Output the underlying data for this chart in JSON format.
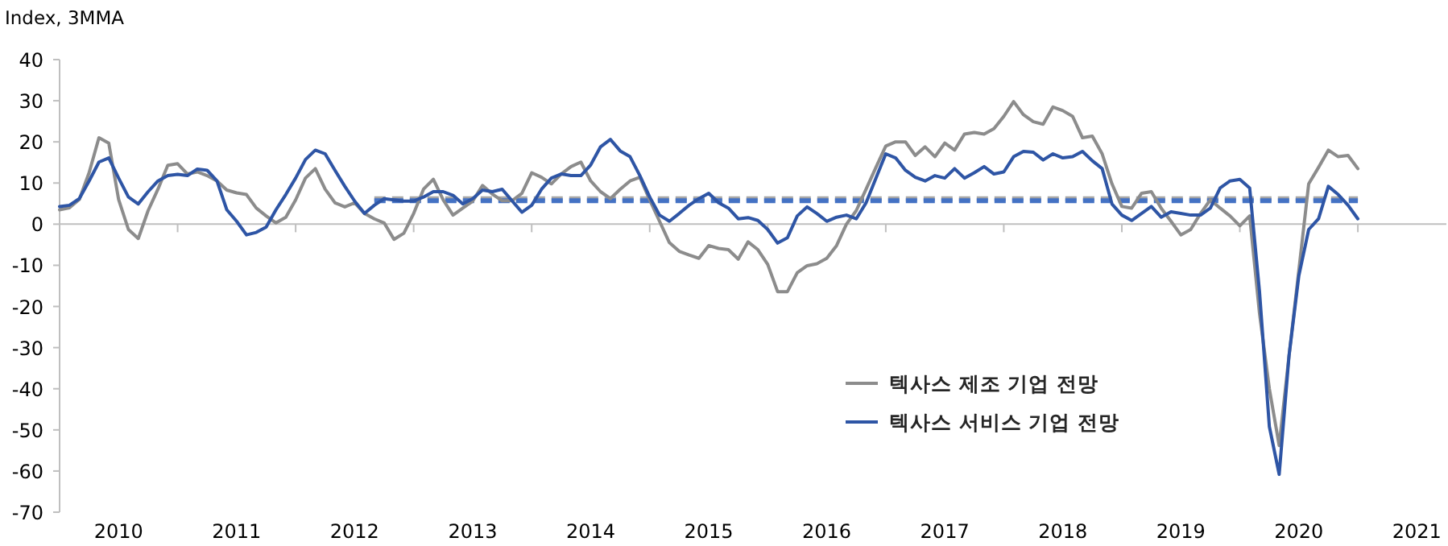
{
  "chart_data": {
    "type": "line",
    "ylabel": "Index, 3MMA",
    "legend": "bottom",
    "xlim": [
      "2010-01",
      "2021-10"
    ],
    "ylim": [
      -70,
      40
    ],
    "yticks": [
      -70,
      -60,
      -50,
      -40,
      -30,
      -20,
      -10,
      0,
      10,
      20,
      30,
      40
    ],
    "xticks": [
      {
        "value": "2010-07",
        "label": "2010"
      },
      {
        "value": "2011-07",
        "label": "2011"
      },
      {
        "value": "2012-07",
        "label": "2012"
      },
      {
        "value": "2013-07",
        "label": "2013"
      },
      {
        "value": "2014-07",
        "label": "2014"
      },
      {
        "value": "2015-07",
        "label": "2015"
      },
      {
        "value": "2016-07",
        "label": "2016"
      },
      {
        "value": "2017-07",
        "label": "2017"
      },
      {
        "value": "2018-07",
        "label": "2018"
      },
      {
        "value": "2019-07",
        "label": "2019"
      },
      {
        "value": "2020-07",
        "label": "2020"
      },
      {
        "value": "2021-07",
        "label": "2021"
      },
      {
        "value": "2011-01",
        "label": null
      },
      {
        "value": "2012-01",
        "label": null
      },
      {
        "value": "2013-01",
        "label": null
      },
      {
        "value": "2014-01",
        "label": null
      },
      {
        "value": "2015-01",
        "label": null
      },
      {
        "value": "2016-01",
        "label": null
      },
      {
        "value": "2017-01",
        "label": null
      },
      {
        "value": "2018-01",
        "label": null
      },
      {
        "value": "2019-01",
        "label": null
      },
      {
        "value": "2020-01",
        "label": null
      },
      {
        "value": "2021-01",
        "label": null
      }
    ],
    "x": [
      "2010-01",
      "2010-02",
      "2010-03",
      "2010-04",
      "2010-05",
      "2010-06",
      "2010-07",
      "2010-08",
      "2010-09",
      "2010-10",
      "2010-11",
      "2010-12",
      "2011-01",
      "2011-02",
      "2011-03",
      "2011-04",
      "2011-05",
      "2011-06",
      "2011-07",
      "2011-08",
      "2011-09",
      "2011-10",
      "2011-11",
      "2011-12",
      "2012-01",
      "2012-02",
      "2012-03",
      "2012-04",
      "2012-05",
      "2012-06",
      "2012-07",
      "2012-08",
      "2012-09",
      "2012-10",
      "2012-11",
      "2012-12",
      "2013-01",
      "2013-02",
      "2013-03",
      "2013-04",
      "2013-05",
      "2013-06",
      "2013-07",
      "2013-08",
      "2013-09",
      "2013-10",
      "2013-11",
      "2013-12",
      "2014-01",
      "2014-02",
      "2014-03",
      "2014-04",
      "2014-05",
      "2014-06",
      "2014-07",
      "2014-08",
      "2014-09",
      "2014-10",
      "2014-11",
      "2014-12",
      "2015-01",
      "2015-02",
      "2015-03",
      "2015-04",
      "2015-05",
      "2015-06",
      "2015-07",
      "2015-08",
      "2015-09",
      "2015-10",
      "2015-11",
      "2015-12",
      "2016-01",
      "2016-02",
      "2016-03",
      "2016-04",
      "2016-05",
      "2016-06",
      "2016-07",
      "2016-08",
      "2016-09",
      "2016-10",
      "2016-11",
      "2016-12",
      "2017-01",
      "2017-02",
      "2017-03",
      "2017-04",
      "2017-05",
      "2017-06",
      "2017-07",
      "2017-08",
      "2017-09",
      "2017-10",
      "2017-11",
      "2017-12",
      "2018-01",
      "2018-02",
      "2018-03",
      "2018-04",
      "2018-05",
      "2018-06",
      "2018-07",
      "2018-08",
      "2018-09",
      "2018-10",
      "2018-11",
      "2018-12",
      "2019-01",
      "2019-02",
      "2019-03",
      "2019-04",
      "2019-05",
      "2019-06",
      "2019-07",
      "2019-08",
      "2019-09",
      "2019-10",
      "2019-11",
      "2019-12",
      "2020-01",
      "2020-02",
      "2020-03",
      "2020-04",
      "2020-05",
      "2020-06",
      "2020-07",
      "2020-08",
      "2020-09",
      "2020-10",
      "2020-11",
      "2020-12",
      "2021-01"
    ],
    "series": [
      {
        "name": "텍사스 제조 기업 전망",
        "color": "#8c8c8c",
        "values": [
          3.5,
          4,
          6,
          12.5,
          21,
          19.7,
          6,
          -1.3,
          -3.5,
          3.3,
          8.5,
          14.3,
          14.7,
          12.2,
          12.7,
          11.8,
          10.5,
          8.3,
          7.6,
          7.2,
          3.9,
          2,
          0.3,
          1.7,
          5.9,
          11.2,
          13.5,
          8.5,
          5.2,
          4.2,
          5.2,
          2.6,
          1.3,
          0.3,
          -3.7,
          -2.2,
          2.6,
          8.5,
          10.9,
          5.9,
          2.2,
          3.9,
          5.6,
          9.4,
          7.3,
          5.7,
          5.7,
          7.5,
          12.5,
          11.4,
          9.8,
          12.2,
          14,
          15.1,
          10.5,
          7.9,
          6.2,
          8.5,
          10.5,
          11.4,
          5.9,
          0.7,
          -4.5,
          -6.6,
          -7.5,
          -8.3,
          -5.2,
          -5.9,
          -6.2,
          -8.5,
          -4.3,
          -6.2,
          -9.8,
          -16.4,
          -16.4,
          -11.8,
          -10.1,
          -9.6,
          -8.3,
          -5.2,
          0,
          3.3,
          8.5,
          13.8,
          19,
          20,
          20,
          16.7,
          18.8,
          16.4,
          19.7,
          18,
          21.9,
          22.3,
          21.9,
          23.2,
          26.2,
          29.8,
          26.6,
          24.9,
          24.3,
          28.5,
          27.6,
          26.2,
          21,
          21.4,
          17.1,
          9.8,
          4.3,
          3.9,
          7.5,
          7.9,
          3.9,
          0.7,
          -2.6,
          -1.3,
          2.6,
          5.9,
          3.9,
          2,
          -0.4,
          2,
          -21.7,
          -40,
          -53.8,
          -32,
          -11.2,
          9.8,
          13.8,
          18,
          16.4,
          16.7,
          13.5
        ]
      },
      {
        "name": "텍사스 서비스 기업 전망",
        "color": "#2e55a5",
        "values": [
          4.3,
          4.6,
          6.2,
          10.5,
          15.1,
          16.1,
          11.2,
          6.6,
          4.9,
          7.9,
          10.5,
          11.8,
          12.1,
          11.8,
          13.4,
          13.1,
          10.5,
          3.5,
          0.7,
          -2.6,
          -2,
          -0.7,
          3.5,
          7.2,
          11.2,
          15.7,
          18,
          17.1,
          13.1,
          9.2,
          5.6,
          2.6,
          4.6,
          6.2,
          5.9,
          5.6,
          5.6,
          6.6,
          7.9,
          7.9,
          7,
          4.9,
          6.2,
          8.3,
          7.9,
          8.5,
          5.7,
          2.9,
          4.6,
          8.5,
          11.2,
          12.2,
          11.8,
          11.8,
          14.4,
          18.8,
          20.6,
          17.8,
          16.4,
          11.8,
          6.6,
          2.2,
          0.7,
          2.6,
          4.6,
          6.2,
          7.5,
          5.2,
          3.9,
          1.3,
          1.6,
          0.9,
          -1.3,
          -4.6,
          -3.3,
          2,
          4.2,
          2.6,
          0.7,
          1.7,
          2.2,
          1.3,
          5.2,
          11.2,
          17.1,
          16.1,
          13.1,
          11.4,
          10.5,
          11.8,
          11.2,
          13.5,
          11.2,
          12.5,
          14,
          12.2,
          12.7,
          16.4,
          17.7,
          17.5,
          15.6,
          17.1,
          16.1,
          16.4,
          17.7,
          15.4,
          13.5,
          4.9,
          2.2,
          0.9,
          2.6,
          4.3,
          1.7,
          3,
          2.6,
          2.2,
          2.2,
          3.9,
          8.8,
          10.5,
          10.9,
          8.8,
          -16.4,
          -49.2,
          -60.8,
          -32,
          -12.5,
          -1.3,
          1.3,
          9.2,
          7.2,
          4.6,
          1.3
        ]
      },
      {
        "color": "#a6a6a6",
        "line_style": "dashed",
        "x": [
          "2012-09",
          "2021-01"
        ],
        "values": [
          6.2,
          6.2
        ]
      },
      {
        "color": "#4472c4",
        "line_style": "dashed",
        "x": [
          "2012-09",
          "2021-01"
        ],
        "values": [
          5.7,
          5.7
        ]
      }
    ]
  }
}
